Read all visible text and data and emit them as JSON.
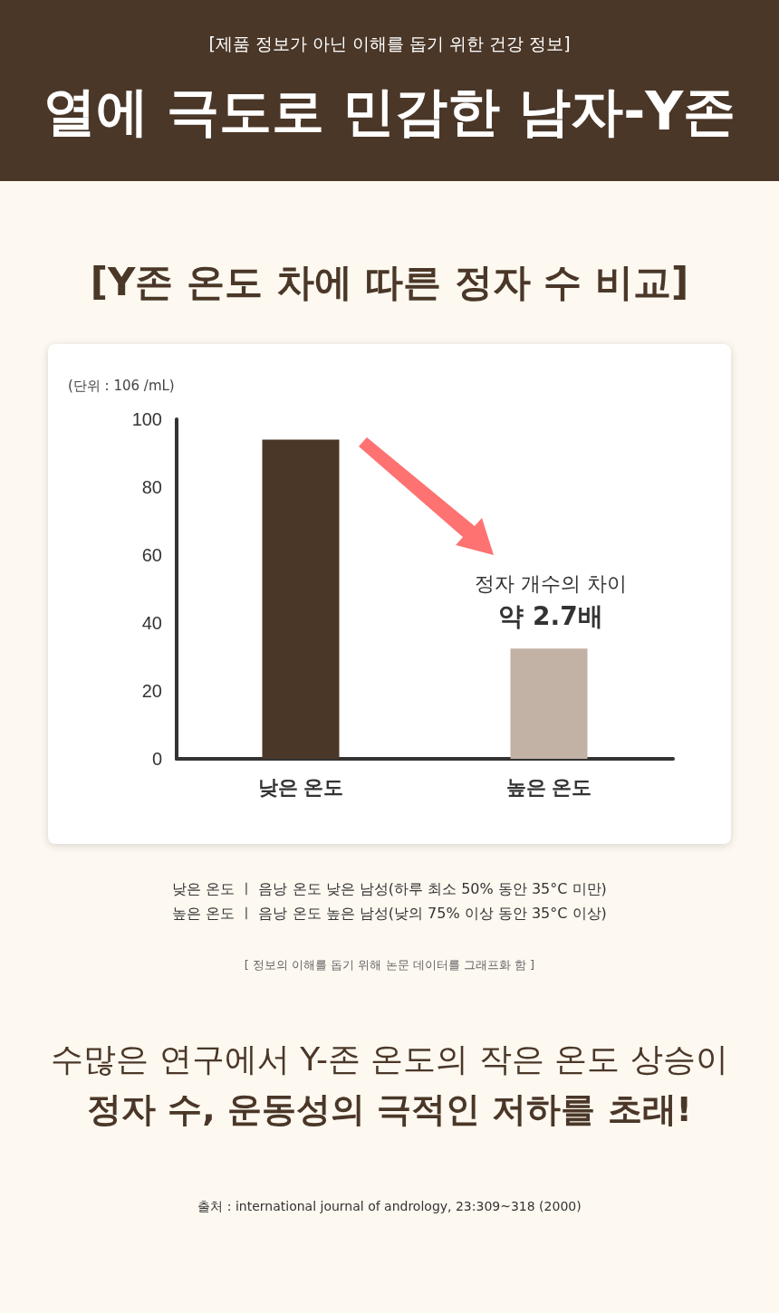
{
  "chart_data": {
    "type": "bar",
    "title": "열에 극도로 민감한 남자-Y존",
    "subtitle": "[Y존 온도 차에 따른 정자 수 비교]",
    "ylabel": "(단위 : 106 /mL)",
    "categories": [
      "낮은 온도",
      "높은 온도"
    ],
    "values": [
      94,
      32.5
    ],
    "colors": [
      "#4a3728",
      "#c2b2a5"
    ],
    "ylim": [
      0,
      100
    ],
    "yticks": [
      0,
      20,
      40,
      60,
      80,
      100
    ],
    "grid": false,
    "annotations": [
      "[제품 정보가 아닌 이해를 돕기 위한 건강 정보]",
      "정자 개수의 차이",
      "약 2.7배",
      "낮은 온도  ㅣ  음낭 온도 낮은 남성(하루 최소 50% 동안 35°C 미만)",
      "높은 온도  ㅣ  음낭 온도 높은 남성(낮의 75% 이상 동안 35°C 이상)",
      "[ 정보의 이해를 돕기 위해 논문 데이터를 그래프화 함 ]",
      "수많은 연구에서 Y-존 온도의 작은 온도 상승이",
      "정자 수, 운동성의 극적인 저하를 초래!",
      "출처 : international journal of andrology, 23:309~318 (2000)"
    ]
  }
}
